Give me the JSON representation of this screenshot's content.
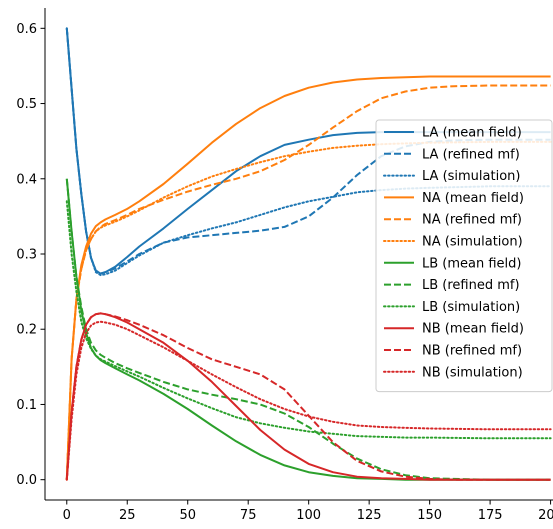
{
  "chart_data": {
    "type": "line",
    "title": "",
    "xlabel": "",
    "ylabel": "",
    "xlim": [
      -9,
      201
    ],
    "ylim": [
      -0.027,
      0.627
    ],
    "xticks": [
      0,
      25,
      50,
      75,
      100,
      125,
      150,
      175,
      200
    ],
    "yticks": [
      0.0,
      0.1,
      0.2,
      0.3,
      0.4,
      0.5,
      0.6
    ],
    "ytick_labels": [
      "0.0",
      "0.1",
      "0.2",
      "0.3",
      "0.4",
      "0.5",
      "0.6"
    ],
    "grid": false,
    "legend_position": "center-right",
    "colors": {
      "LA": "#1f77b4",
      "NA": "#ff7f0e",
      "LB": "#2ca02c",
      "NB": "#d62728"
    },
    "series": [
      {
        "name": "LA (mean field)",
        "color": "#1f77b4",
        "style": "solid",
        "x": [
          0,
          2,
          4,
          6,
          8,
          10,
          12,
          14,
          16,
          20,
          25,
          30,
          40,
          50,
          60,
          70,
          80,
          90,
          100,
          110,
          120,
          130,
          140,
          150,
          175,
          200
        ],
        "y": [
          0.6,
          0.52,
          0.44,
          0.38,
          0.33,
          0.295,
          0.278,
          0.274,
          0.276,
          0.283,
          0.296,
          0.31,
          0.334,
          0.36,
          0.385,
          0.41,
          0.43,
          0.445,
          0.452,
          0.458,
          0.461,
          0.462,
          0.462,
          0.462,
          0.462,
          0.462
        ]
      },
      {
        "name": "LA (refined mf)",
        "color": "#1f77b4",
        "style": "dashed",
        "x": [
          0,
          2,
          4,
          6,
          8,
          10,
          12,
          14,
          16,
          20,
          25,
          30,
          40,
          50,
          60,
          70,
          80,
          90,
          100,
          110,
          120,
          130,
          140,
          150,
          160,
          175,
          200
        ],
        "y": [
          0.6,
          0.52,
          0.44,
          0.38,
          0.33,
          0.295,
          0.278,
          0.274,
          0.276,
          0.281,
          0.29,
          0.3,
          0.315,
          0.322,
          0.325,
          0.328,
          0.331,
          0.336,
          0.35,
          0.375,
          0.405,
          0.43,
          0.443,
          0.449,
          0.451,
          0.452,
          0.452
        ]
      },
      {
        "name": "LA (simulation)",
        "color": "#1f77b4",
        "style": "dotted",
        "x": [
          0,
          2,
          4,
          6,
          8,
          10,
          12,
          14,
          16,
          20,
          25,
          30,
          40,
          50,
          60,
          70,
          80,
          90,
          100,
          110,
          120,
          130,
          140,
          150,
          175,
          200
        ],
        "y": [
          0.6,
          0.52,
          0.44,
          0.38,
          0.33,
          0.295,
          0.276,
          0.272,
          0.273,
          0.278,
          0.288,
          0.298,
          0.315,
          0.325,
          0.334,
          0.342,
          0.352,
          0.362,
          0.37,
          0.376,
          0.382,
          0.385,
          0.387,
          0.388,
          0.39,
          0.39
        ]
      },
      {
        "name": "NA (mean field)",
        "color": "#ff7f0e",
        "style": "solid",
        "x": [
          0,
          2,
          4,
          6,
          8,
          10,
          12,
          14,
          16,
          20,
          25,
          30,
          40,
          50,
          60,
          70,
          80,
          90,
          100,
          110,
          120,
          130,
          140,
          150,
          175,
          200
        ],
        "y": [
          0.0,
          0.16,
          0.24,
          0.285,
          0.31,
          0.327,
          0.337,
          0.342,
          0.346,
          0.352,
          0.36,
          0.37,
          0.393,
          0.42,
          0.448,
          0.473,
          0.494,
          0.51,
          0.521,
          0.528,
          0.532,
          0.534,
          0.535,
          0.536,
          0.536,
          0.536
        ]
      },
      {
        "name": "NA (refined mf)",
        "color": "#ff7f0e",
        "style": "dashed",
        "x": [
          0,
          2,
          4,
          6,
          8,
          10,
          12,
          14,
          16,
          20,
          25,
          30,
          40,
          50,
          60,
          70,
          80,
          90,
          100,
          110,
          120,
          130,
          140,
          150,
          160,
          175,
          200
        ],
        "y": [
          0.0,
          0.16,
          0.24,
          0.28,
          0.305,
          0.32,
          0.33,
          0.336,
          0.34,
          0.345,
          0.352,
          0.36,
          0.372,
          0.383,
          0.392,
          0.4,
          0.41,
          0.425,
          0.445,
          0.468,
          0.49,
          0.507,
          0.516,
          0.521,
          0.523,
          0.524,
          0.524
        ]
      },
      {
        "name": "NA (simulation)",
        "color": "#ff7f0e",
        "style": "dotted",
        "x": [
          0,
          2,
          4,
          6,
          8,
          10,
          12,
          14,
          16,
          20,
          25,
          30,
          40,
          50,
          60,
          70,
          80,
          90,
          100,
          110,
          120,
          130,
          140,
          150,
          175,
          200
        ],
        "y": [
          0.0,
          0.16,
          0.24,
          0.28,
          0.305,
          0.32,
          0.33,
          0.335,
          0.338,
          0.343,
          0.35,
          0.358,
          0.375,
          0.39,
          0.403,
          0.413,
          0.422,
          0.43,
          0.436,
          0.441,
          0.444,
          0.446,
          0.447,
          0.448,
          0.449,
          0.449
        ]
      },
      {
        "name": "LB (mean field)",
        "color": "#2ca02c",
        "style": "solid",
        "x": [
          0,
          2,
          4,
          6,
          8,
          10,
          12,
          14,
          16,
          20,
          25,
          30,
          40,
          50,
          60,
          70,
          80,
          90,
          100,
          110,
          120,
          130,
          140,
          150,
          175,
          200
        ],
        "y": [
          0.4,
          0.33,
          0.27,
          0.225,
          0.195,
          0.175,
          0.165,
          0.159,
          0.155,
          0.148,
          0.14,
          0.132,
          0.114,
          0.094,
          0.072,
          0.051,
          0.033,
          0.019,
          0.01,
          0.005,
          0.002,
          0.001,
          0.0,
          0.0,
          0.0,
          0.0
        ]
      },
      {
        "name": "LB (refined mf)",
        "color": "#2ca02c",
        "style": "dashed",
        "x": [
          0,
          2,
          4,
          6,
          8,
          10,
          12,
          14,
          16,
          20,
          25,
          30,
          40,
          50,
          60,
          70,
          80,
          90,
          100,
          110,
          120,
          130,
          140,
          150,
          160,
          175,
          200
        ],
        "y": [
          0.4,
          0.33,
          0.27,
          0.23,
          0.2,
          0.182,
          0.172,
          0.166,
          0.162,
          0.155,
          0.148,
          0.142,
          0.13,
          0.12,
          0.113,
          0.107,
          0.1,
          0.088,
          0.07,
          0.048,
          0.028,
          0.014,
          0.006,
          0.002,
          0.001,
          0.0,
          0.0
        ]
      },
      {
        "name": "LB (simulation)",
        "color": "#2ca02c",
        "style": "dotted",
        "x": [
          0,
          2,
          4,
          6,
          8,
          10,
          12,
          14,
          16,
          20,
          25,
          30,
          40,
          50,
          60,
          70,
          80,
          90,
          100,
          110,
          120,
          130,
          140,
          150,
          175,
          200
        ],
        "y": [
          0.37,
          0.3,
          0.25,
          0.21,
          0.188,
          0.174,
          0.165,
          0.16,
          0.157,
          0.151,
          0.144,
          0.137,
          0.122,
          0.108,
          0.095,
          0.083,
          0.075,
          0.069,
          0.064,
          0.061,
          0.058,
          0.057,
          0.056,
          0.056,
          0.055,
          0.055
        ]
      },
      {
        "name": "NB (mean field)",
        "color": "#d62728",
        "style": "solid",
        "x": [
          0,
          2,
          4,
          6,
          8,
          10,
          12,
          14,
          16,
          20,
          25,
          30,
          40,
          50,
          60,
          70,
          80,
          90,
          100,
          110,
          120,
          130,
          140,
          150,
          175,
          200
        ],
        "y": [
          0.0,
          0.09,
          0.15,
          0.186,
          0.206,
          0.216,
          0.22,
          0.221,
          0.22,
          0.216,
          0.209,
          0.2,
          0.182,
          0.158,
          0.13,
          0.098,
          0.066,
          0.04,
          0.021,
          0.01,
          0.004,
          0.002,
          0.001,
          0.0,
          0.0,
          0.0
        ]
      },
      {
        "name": "NB (refined mf)",
        "color": "#d62728",
        "style": "dashed",
        "x": [
          0,
          2,
          4,
          6,
          8,
          10,
          12,
          14,
          16,
          20,
          25,
          30,
          40,
          50,
          60,
          70,
          80,
          90,
          100,
          110,
          120,
          130,
          140,
          150,
          160,
          175,
          200
        ],
        "y": [
          0.0,
          0.09,
          0.15,
          0.186,
          0.206,
          0.216,
          0.22,
          0.221,
          0.22,
          0.217,
          0.212,
          0.206,
          0.192,
          0.175,
          0.16,
          0.15,
          0.14,
          0.12,
          0.085,
          0.05,
          0.025,
          0.011,
          0.004,
          0.001,
          0.0,
          0.0,
          0.0
        ]
      },
      {
        "name": "NB (simulation)",
        "color": "#d62728",
        "style": "dotted",
        "x": [
          0,
          2,
          4,
          6,
          8,
          10,
          12,
          14,
          16,
          20,
          25,
          30,
          40,
          50,
          60,
          70,
          80,
          90,
          100,
          110,
          120,
          130,
          140,
          150,
          175,
          200
        ],
        "y": [
          0.0,
          0.08,
          0.14,
          0.175,
          0.195,
          0.205,
          0.209,
          0.21,
          0.209,
          0.206,
          0.2,
          0.192,
          0.176,
          0.158,
          0.14,
          0.123,
          0.107,
          0.094,
          0.084,
          0.077,
          0.072,
          0.07,
          0.069,
          0.068,
          0.067,
          0.067
        ]
      }
    ]
  }
}
